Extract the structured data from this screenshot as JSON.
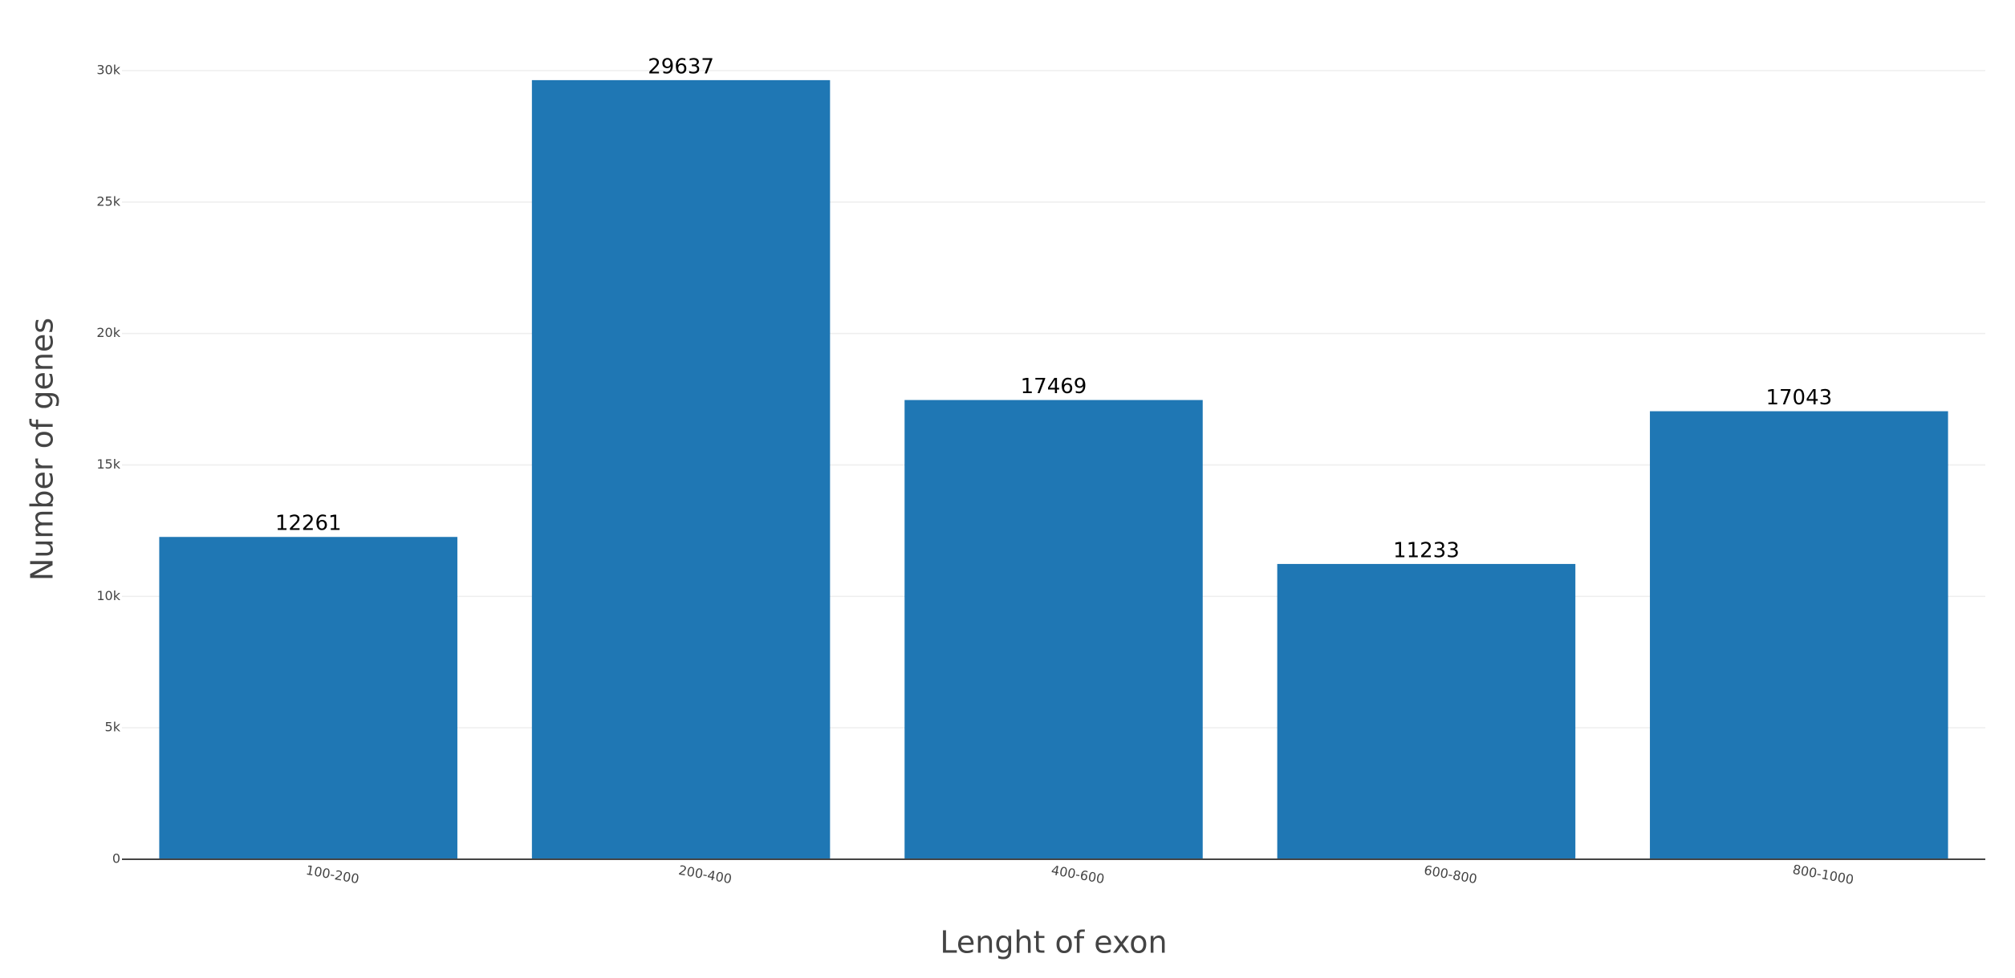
{
  "chart_data": {
    "type": "bar",
    "x_label": "Lenght of exon",
    "y_label": "Number of genes",
    "categories": [
      "100-200",
      "200-400",
      "400-600",
      "600-800",
      "800-1000"
    ],
    "values": [
      12261,
      29637,
      17469,
      11233,
      17043
    ],
    "color": "#1f77b4",
    "ylim": [
      0,
      30000
    ],
    "yticks": [
      0,
      {
        "value": 5000,
        "label": "5k"
      },
      {
        "value": 10000,
        "label": "10k"
      },
      {
        "value": 15000,
        "label": "15k"
      },
      {
        "value": 20000,
        "label": "20k"
      },
      {
        "value": 25000,
        "label": "25k"
      },
      {
        "value": 30000,
        "label": "30k"
      }
    ],
    "grid": true
  }
}
